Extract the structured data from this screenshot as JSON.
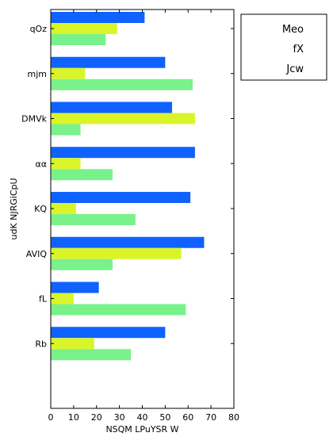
{
  "chart_data": {
    "type": "bar",
    "orientation": "horizontal",
    "title": "",
    "xlabel": "NSQM LPuYSR W",
    "ylabel": "udK NJRGiCpU",
    "xlim": [
      0,
      80
    ],
    "xticks": [
      "0",
      "10",
      "20",
      "30",
      "40",
      "50",
      "60",
      "70",
      "80"
    ],
    "categories": [
      "qOz",
      "mjm",
      "DMVk",
      "αα",
      "KQ",
      "AVIQ",
      "fL",
      "Rb"
    ],
    "series": [
      {
        "name": "Meo",
        "color": "#0f62fe",
        "values": [
          41,
          50,
          53,
          63,
          61,
          67,
          21,
          50
        ]
      },
      {
        "name": "fX",
        "color": "#d9f52a",
        "values": [
          29,
          15,
          63,
          13,
          11,
          57,
          10,
          19
        ]
      },
      {
        "name": "Jcw",
        "color": "#79f28b",
        "values": [
          24,
          62,
          13,
          27,
          37,
          27,
          59,
          35
        ]
      }
    ],
    "legend_position": "top-right, outside plot area",
    "grid": false
  }
}
